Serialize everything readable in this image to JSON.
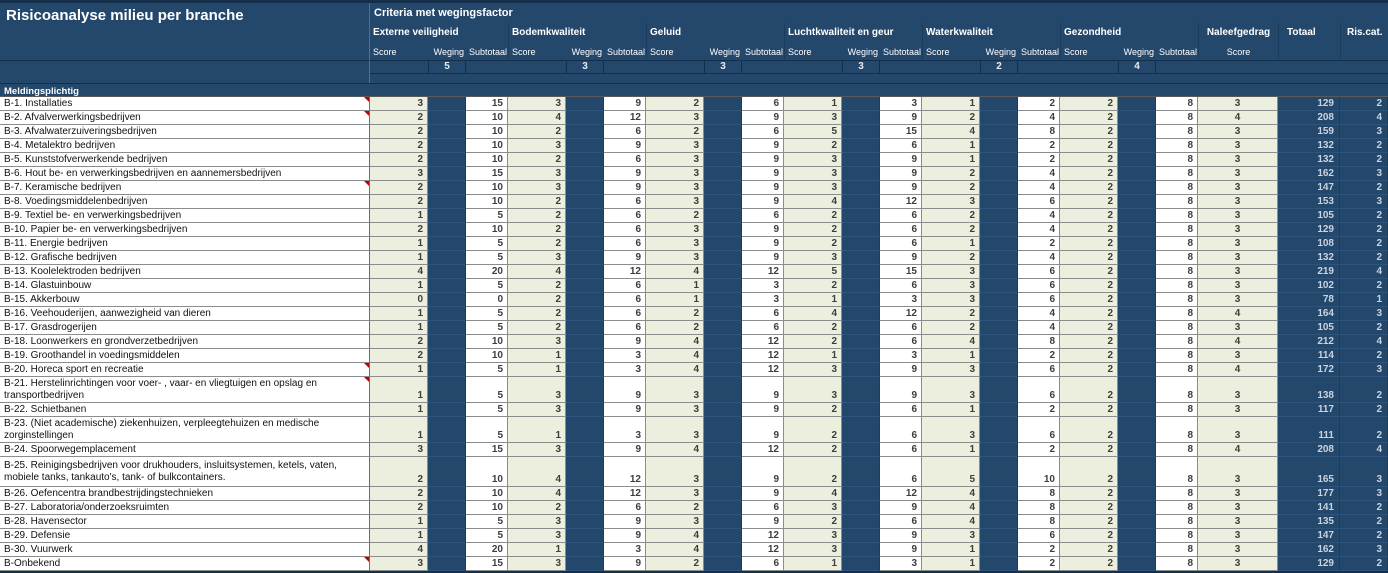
{
  "title": "Risicoanalyse milieu per branche",
  "section_label": "Meldingsplichtig",
  "colors": {
    "navy": "#24476C",
    "score_cell_green": "#ECEFDE",
    "comment_marker_red": "#C00000"
  },
  "header": {
    "criteria_title": "Criteria met wegingsfactor",
    "sub_labels": {
      "score": "Score",
      "weging": "Weging",
      "subtotaal": "Subtotaal"
    },
    "groups": [
      {
        "name": "Externe veiligheid",
        "weging": 5
      },
      {
        "name": "Bodemkwaliteit",
        "weging": 3
      },
      {
        "name": "Geluid",
        "weging": 3
      },
      {
        "name": "Luchtkwaliteit en geur",
        "weging": 3
      },
      {
        "name": "Waterkwaliteit",
        "weging": 2
      },
      {
        "name": "Gezondheid",
        "weging": 4
      }
    ],
    "naleefgedrag": {
      "name": "Naleefgedrag",
      "sub": "Score"
    },
    "totaal_label": "Totaal",
    "riscat_label": "Ris.cat."
  },
  "rows": [
    {
      "label": "B-1. Installaties",
      "scores": [
        3,
        15,
        3,
        9,
        2,
        6,
        1,
        3,
        1,
        2,
        2,
        8
      ],
      "naleefgedrag": 3,
      "totaal": 129,
      "riscat": 2,
      "comment": true,
      "size": 1
    },
    {
      "label": "B-2. Afvalverwerkingsbedrijven",
      "scores": [
        2,
        10,
        4,
        12,
        3,
        9,
        3,
        9,
        2,
        4,
        2,
        8
      ],
      "naleefgedrag": 4,
      "totaal": 208,
      "riscat": 4,
      "comment": true,
      "size": 1
    },
    {
      "label": "B-3. Afvalwaterzuiveringsbedrijven",
      "scores": [
        2,
        10,
        2,
        6,
        2,
        6,
        5,
        15,
        4,
        8,
        2,
        8
      ],
      "naleefgedrag": 3,
      "totaal": 159,
      "riscat": 3,
      "comment": false,
      "size": 1
    },
    {
      "label": "B-4. Metalektro bedrijven",
      "scores": [
        2,
        10,
        3,
        9,
        3,
        9,
        2,
        6,
        1,
        2,
        2,
        8
      ],
      "naleefgedrag": 3,
      "totaal": 132,
      "riscat": 2,
      "comment": false,
      "size": 1
    },
    {
      "label": "B-5. Kunststofverwerkende bedrijven",
      "scores": [
        2,
        10,
        2,
        6,
        3,
        9,
        3,
        9,
        1,
        2,
        2,
        8
      ],
      "naleefgedrag": 3,
      "totaal": 132,
      "riscat": 2,
      "comment": false,
      "size": 1
    },
    {
      "label": "B-6. Hout be- en verwerkingsbedrijven en aannemersbedrijven",
      "scores": [
        3,
        15,
        3,
        9,
        3,
        9,
        3,
        9,
        2,
        4,
        2,
        8
      ],
      "naleefgedrag": 3,
      "totaal": 162,
      "riscat": 3,
      "comment": false,
      "size": 1
    },
    {
      "label": "B-7. Keramische bedrijven",
      "scores": [
        2,
        10,
        3,
        9,
        3,
        9,
        3,
        9,
        2,
        4,
        2,
        8
      ],
      "naleefgedrag": 3,
      "totaal": 147,
      "riscat": 2,
      "comment": true,
      "size": 1
    },
    {
      "label": "B-8. Voedingsmiddelenbedrijven",
      "scores": [
        2,
        10,
        2,
        6,
        3,
        9,
        4,
        12,
        3,
        6,
        2,
        8
      ],
      "naleefgedrag": 3,
      "totaal": 153,
      "riscat": 3,
      "comment": false,
      "size": 1
    },
    {
      "label": "B-9. Textiel be- en verwerkingsbedrijven",
      "scores": [
        1,
        5,
        2,
        6,
        2,
        6,
        2,
        6,
        2,
        4,
        2,
        8
      ],
      "naleefgedrag": 3,
      "totaal": 105,
      "riscat": 2,
      "comment": false,
      "size": 1
    },
    {
      "label": "B-10. Papier be- en verwerkingsbedrijven",
      "scores": [
        2,
        10,
        2,
        6,
        3,
        9,
        2,
        6,
        2,
        4,
        2,
        8
      ],
      "naleefgedrag": 3,
      "totaal": 129,
      "riscat": 2,
      "comment": false,
      "size": 1
    },
    {
      "label": "B-11. Energie bedrijven",
      "scores": [
        1,
        5,
        2,
        6,
        3,
        9,
        2,
        6,
        1,
        2,
        2,
        8
      ],
      "naleefgedrag": 3,
      "totaal": 108,
      "riscat": 2,
      "comment": false,
      "size": 1
    },
    {
      "label": "B-12. Grafische bedrijven",
      "scores": [
        1,
        5,
        3,
        9,
        3,
        9,
        3,
        9,
        2,
        4,
        2,
        8
      ],
      "naleefgedrag": 3,
      "totaal": 132,
      "riscat": 2,
      "comment": false,
      "size": 1
    },
    {
      "label": "B-13. Koolelektroden bedrijven",
      "scores": [
        4,
        20,
        4,
        12,
        4,
        12,
        5,
        15,
        3,
        6,
        2,
        8
      ],
      "naleefgedrag": 3,
      "totaal": 219,
      "riscat": 4,
      "comment": false,
      "size": 1
    },
    {
      "label": "B-14. Glastuinbouw",
      "scores": [
        1,
        5,
        2,
        6,
        1,
        3,
        2,
        6,
        3,
        6,
        2,
        8
      ],
      "naleefgedrag": 3,
      "totaal": 102,
      "riscat": 2,
      "comment": false,
      "size": 1
    },
    {
      "label": "B-15. Akkerbouw",
      "scores": [
        0,
        0,
        2,
        6,
        1,
        3,
        1,
        3,
        3,
        6,
        2,
        8
      ],
      "naleefgedrag": 3,
      "totaal": 78,
      "riscat": 1,
      "comment": false,
      "size": 1
    },
    {
      "label": "B-16. Veehouderijen, aanwezigheid van dieren",
      "scores": [
        1,
        5,
        2,
        6,
        2,
        6,
        4,
        12,
        2,
        4,
        2,
        8
      ],
      "naleefgedrag": 4,
      "totaal": 164,
      "riscat": 3,
      "comment": false,
      "size": 1
    },
    {
      "label": "B-17. Grasdrogerijen",
      "scores": [
        1,
        5,
        2,
        6,
        2,
        6,
        2,
        6,
        2,
        4,
        2,
        8
      ],
      "naleefgedrag": 3,
      "totaal": 105,
      "riscat": 2,
      "comment": false,
      "size": 1
    },
    {
      "label": "B-18. Loonwerkers en grondverzetbedrijven",
      "scores": [
        2,
        10,
        3,
        9,
        4,
        12,
        2,
        6,
        4,
        8,
        2,
        8
      ],
      "naleefgedrag": 4,
      "totaal": 212,
      "riscat": 4,
      "comment": false,
      "size": 1
    },
    {
      "label": "B-19. Groothandel in voedingsmiddelen",
      "scores": [
        2,
        10,
        1,
        3,
        4,
        12,
        1,
        3,
        1,
        2,
        2,
        8
      ],
      "naleefgedrag": 3,
      "totaal": 114,
      "riscat": 2,
      "comment": false,
      "size": 1
    },
    {
      "label": "B-20. Horeca sport en recreatie",
      "scores": [
        1,
        5,
        1,
        3,
        4,
        12,
        3,
        9,
        3,
        6,
        2,
        8
      ],
      "naleefgedrag": 4,
      "totaal": 172,
      "riscat": 3,
      "comment": true,
      "size": 1
    },
    {
      "label": "B-21. Herstelinrichtingen voor voer- , vaar- en vliegtuigen en opslag en transportbedrijven",
      "scores": [
        1,
        5,
        3,
        9,
        3,
        9,
        3,
        9,
        3,
        6,
        2,
        8
      ],
      "naleefgedrag": 3,
      "totaal": 138,
      "riscat": 2,
      "comment": true,
      "size": 2
    },
    {
      "label": "B-22. Schietbanen",
      "scores": [
        1,
        5,
        3,
        9,
        3,
        9,
        2,
        6,
        1,
        2,
        2,
        8
      ],
      "naleefgedrag": 3,
      "totaal": 117,
      "riscat": 2,
      "comment": false,
      "size": 1
    },
    {
      "label": "B-23. (Niet academische) ziekenhuizen, verpleegtehuizen en medische zorginstellingen",
      "scores": [
        1,
        5,
        1,
        3,
        3,
        9,
        2,
        6,
        3,
        6,
        2,
        8
      ],
      "naleefgedrag": 3,
      "totaal": 111,
      "riscat": 2,
      "comment": false,
      "size": 2
    },
    {
      "label": "B-24. Spoorwegemplacement",
      "scores": [
        3,
        15,
        3,
        9,
        4,
        12,
        2,
        6,
        1,
        2,
        2,
        8
      ],
      "naleefgedrag": 4,
      "totaal": 208,
      "riscat": 4,
      "comment": false,
      "size": 1
    },
    {
      "label": "B-25. Reinigingsbedrijven voor drukhouders, insluitsystemen, ketels, vaten, mobiele tanks, tankauto's, tank- of bulkcontainers.",
      "scores": [
        2,
        10,
        4,
        12,
        3,
        9,
        2,
        6,
        5,
        10,
        2,
        8
      ],
      "naleefgedrag": 3,
      "totaal": 165,
      "riscat": 3,
      "comment": false,
      "size": 3
    },
    {
      "label": "B-26. Oefencentra brandbestrijdingstechnieken",
      "scores": [
        2,
        10,
        4,
        12,
        3,
        9,
        4,
        12,
        4,
        8,
        2,
        8
      ],
      "naleefgedrag": 3,
      "totaal": 177,
      "riscat": 3,
      "comment": false,
      "size": 1
    },
    {
      "label": "B-27. Laboratoria/onderzoeksruimten",
      "scores": [
        2,
        10,
        2,
        6,
        2,
        6,
        3,
        9,
        4,
        8,
        2,
        8
      ],
      "naleefgedrag": 3,
      "totaal": 141,
      "riscat": 2,
      "comment": false,
      "size": 1
    },
    {
      "label": "B-28. Havensector",
      "scores": [
        1,
        5,
        3,
        9,
        3,
        9,
        2,
        6,
        4,
        8,
        2,
        8
      ],
      "naleefgedrag": 3,
      "totaal": 135,
      "riscat": 2,
      "comment": false,
      "size": 1
    },
    {
      "label": "B-29. Defensie",
      "scores": [
        1,
        5,
        3,
        9,
        4,
        12,
        3,
        9,
        3,
        6,
        2,
        8
      ],
      "naleefgedrag": 3,
      "totaal": 147,
      "riscat": 2,
      "comment": false,
      "size": 1
    },
    {
      "label": "B-30. Vuurwerk",
      "scores": [
        4,
        20,
        1,
        3,
        4,
        12,
        3,
        9,
        1,
        2,
        2,
        8
      ],
      "naleefgedrag": 3,
      "totaal": 162,
      "riscat": 3,
      "comment": false,
      "size": 1
    },
    {
      "label": "B-Onbekend",
      "scores": [
        3,
        15,
        3,
        9,
        2,
        6,
        1,
        3,
        1,
        2,
        2,
        8
      ],
      "naleefgedrag": 3,
      "totaal": 129,
      "riscat": 2,
      "comment": true,
      "size": 1
    }
  ]
}
